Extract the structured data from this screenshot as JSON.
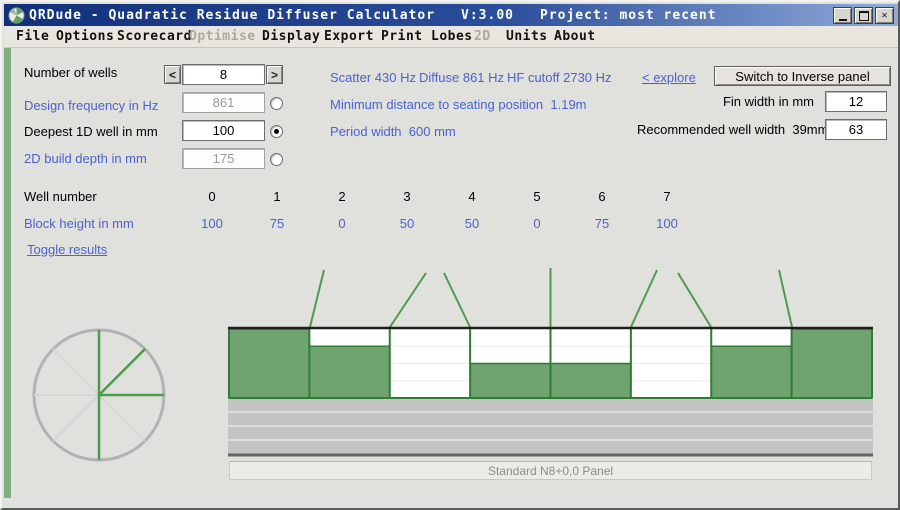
{
  "window": {
    "title": "QRDude - Quadratic Residue Diffuser Calculator",
    "version": "V:3.00",
    "project": "Project: most recent"
  },
  "menu": {
    "items": [
      {
        "label": "File",
        "enabled": true
      },
      {
        "label": "Options",
        "enabled": true
      },
      {
        "label": "Scorecard",
        "enabled": true
      },
      {
        "label": "Optimise",
        "enabled": false
      },
      {
        "label": "Display",
        "enabled": true
      },
      {
        "label": "Export",
        "enabled": true
      },
      {
        "label": "Print",
        "enabled": true
      },
      {
        "label": "Lobes",
        "enabled": true
      },
      {
        "label": "2D",
        "enabled": false
      },
      {
        "label": "Units",
        "enabled": true
      },
      {
        "label": "About",
        "enabled": true
      }
    ]
  },
  "controls": {
    "wells": {
      "label": "Number of wells",
      "value": "8",
      "dec": "<",
      "inc": ">"
    },
    "freq": {
      "label": "Design frequency in Hz",
      "value": "861",
      "selected": false
    },
    "depth1d": {
      "label": "Deepest 1D well in mm",
      "value": "100",
      "selected": true
    },
    "build2d": {
      "label": "2D build depth in mm",
      "value": "175",
      "selected": false
    }
  },
  "info": {
    "scatter": "Scatter 430 Hz",
    "diffuse": "Diffuse 861 Hz",
    "hf_cutoff": "HF cutoff 2730 Hz",
    "min_distance": "Minimum distance to seating position  1.19m",
    "period": "Period width  600 mm",
    "explore": "< explore"
  },
  "right_panel": {
    "switch_button": "Switch to Inverse panel",
    "fin_label": "Fin width in mm",
    "fin_value": "12",
    "well_width_label": "Recommended well width  39mm",
    "well_width_value": "63"
  },
  "table": {
    "well_number_label": "Well number",
    "block_height_label": "Block height in mm",
    "well_numbers": [
      "0",
      "1",
      "2",
      "3",
      "4",
      "5",
      "6",
      "7"
    ],
    "block_heights": [
      "100",
      "75",
      "0",
      "50",
      "50",
      "0",
      "75",
      "100"
    ]
  },
  "links": {
    "toggle_results": "Toggle results"
  },
  "diagram": {
    "caption": "Standard N8+0,0 Panel",
    "max_depth_mm": 100,
    "block_heights_mm": [
      100,
      75,
      0,
      50,
      50,
      0,
      75,
      100
    ]
  },
  "colors": {
    "accent_blue": "#4a63cf",
    "green_fill": "#6fa36f",
    "green_line": "#2f7d33",
    "fin_green": "#4e9a4e",
    "title_bar_left": "#10307a",
    "title_bar_right": "#8fabd9"
  }
}
